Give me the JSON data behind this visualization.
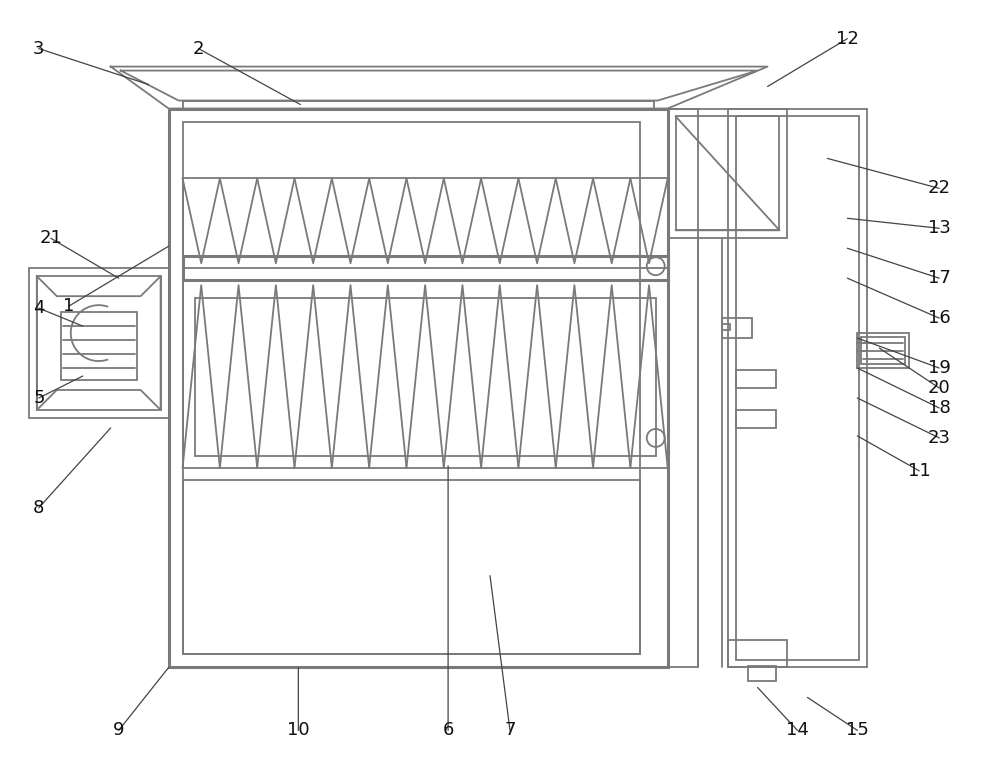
{
  "bg": "#ffffff",
  "lc": "#7a7a7a",
  "lw": 1.3,
  "tlw": 2.2,
  "fig_w": 10.0,
  "fig_h": 7.76,
  "dpi": 100,
  "label_info": [
    [
      "1",
      68,
      470,
      168,
      530
    ],
    [
      "2",
      198,
      728,
      300,
      672
    ],
    [
      "3",
      38,
      728,
      148,
      692
    ],
    [
      "4",
      38,
      468,
      82,
      450
    ],
    [
      "5",
      38,
      378,
      82,
      400
    ],
    [
      "6",
      448,
      45,
      448,
      310
    ],
    [
      "7",
      510,
      45,
      490,
      200
    ],
    [
      "8",
      38,
      268,
      110,
      348
    ],
    [
      "9",
      118,
      45,
      168,
      108
    ],
    [
      "10",
      298,
      45,
      298,
      108
    ],
    [
      "11",
      920,
      305,
      858,
      340
    ],
    [
      "12",
      848,
      738,
      768,
      690
    ],
    [
      "13",
      940,
      548,
      848,
      558
    ],
    [
      "14",
      798,
      45,
      758,
      88
    ],
    [
      "15",
      858,
      45,
      808,
      78
    ],
    [
      "16",
      940,
      458,
      848,
      498
    ],
    [
      "17",
      940,
      498,
      848,
      528
    ],
    [
      "18",
      940,
      368,
      858,
      408
    ],
    [
      "19",
      940,
      408,
      858,
      438
    ],
    [
      "20",
      940,
      388,
      880,
      428
    ],
    [
      "21",
      50,
      538,
      118,
      498
    ],
    [
      "22",
      940,
      588,
      828,
      618
    ],
    [
      "23",
      940,
      338,
      858,
      378
    ]
  ]
}
